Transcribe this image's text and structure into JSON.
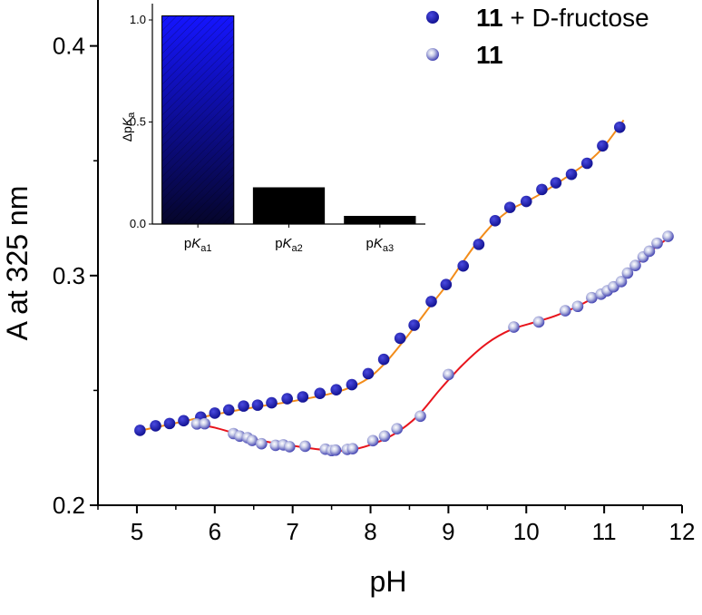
{
  "chart_data": [
    {
      "type": "scatter",
      "xlabel": "pH",
      "ylabel": "A at 325 nm",
      "xlim": [
        4.5,
        12
      ],
      "ylim": [
        0.2,
        0.42
      ],
      "x_ticks": [
        "5",
        "6",
        "7",
        "8",
        "9",
        "10",
        "11",
        "12"
      ],
      "y_ticks": [
        "0.2",
        "0.3",
        "0.4"
      ],
      "x_tick_values": [
        5,
        6,
        7,
        8,
        9,
        10,
        11,
        12
      ],
      "y_tick_values": [
        0.2,
        0.3,
        0.4
      ],
      "legend": {
        "position": "top-right",
        "entries": [
          {
            "bold": "11",
            "rest": " + D-fructose"
          },
          {
            "bold": "11",
            "rest": ""
          }
        ]
      },
      "series": [
        {
          "name": "11 + D-fructose",
          "marker_color": "#1a1aa6",
          "fit_color": "#f28c1a",
          "x": [
            5.04,
            5.24,
            5.42,
            5.6,
            5.82,
            6.0,
            6.18,
            6.37,
            6.55,
            6.73,
            6.93,
            7.13,
            7.35,
            7.56,
            7.76,
            7.97,
            8.17,
            8.38,
            8.56,
            8.78,
            8.97,
            9.19,
            9.39,
            9.6,
            9.79,
            10.0,
            10.2,
            10.38,
            10.58,
            10.78,
            10.98,
            11.2
          ],
          "y": [
            0.2326,
            0.2346,
            0.2356,
            0.2368,
            0.2384,
            0.2401,
            0.2415,
            0.2432,
            0.2436,
            0.2446,
            0.2464,
            0.2472,
            0.2487,
            0.2503,
            0.2525,
            0.2573,
            0.2635,
            0.2727,
            0.2784,
            0.2887,
            0.2961,
            0.3042,
            0.3136,
            0.3239,
            0.3297,
            0.3323,
            0.3375,
            0.3404,
            0.3441,
            0.3489,
            0.3565,
            0.3646
          ]
        },
        {
          "name": "11",
          "marker_color": "#3b3bb4",
          "fit_color": "#e8141c",
          "x": [
            5.77,
            5.87,
            6.24,
            6.32,
            6.42,
            6.48,
            6.6,
            6.78,
            6.88,
            6.96,
            7.16,
            7.42,
            7.5,
            7.55,
            7.7,
            7.77,
            8.03,
            8.18,
            8.34,
            8.64,
            9.0,
            9.84,
            10.16,
            10.5,
            10.66,
            10.84,
            10.96,
            11.04,
            11.12,
            11.22,
            11.3,
            11.4,
            11.5,
            11.58,
            11.68,
            11.82
          ],
          "y": [
            0.2354,
            0.2355,
            0.2312,
            0.2301,
            0.2294,
            0.2282,
            0.2268,
            0.2261,
            0.2263,
            0.2255,
            0.2257,
            0.2244,
            0.2238,
            0.224,
            0.2243,
            0.2246,
            0.2281,
            0.2301,
            0.2333,
            0.2388,
            0.2569,
            0.2776,
            0.2798,
            0.2847,
            0.2866,
            0.2904,
            0.2919,
            0.2934,
            0.2951,
            0.2974,
            0.3011,
            0.3044,
            0.3081,
            0.3106,
            0.3141,
            0.3171
          ]
        }
      ],
      "fits": [
        {
          "series": "11 + D-fructose",
          "x": [
            5.0,
            5.5,
            6.0,
            6.5,
            7.0,
            7.5,
            7.8,
            8.0,
            8.2,
            8.4,
            8.6,
            8.8,
            9.0,
            9.2,
            9.4,
            9.6,
            9.8,
            10.0,
            10.2,
            10.5,
            10.8,
            11.0,
            11.25
          ],
          "y": [
            0.2322,
            0.2358,
            0.2395,
            0.2426,
            0.2453,
            0.2487,
            0.2521,
            0.256,
            0.2624,
            0.2705,
            0.2792,
            0.2882,
            0.2968,
            0.3066,
            0.3158,
            0.3234,
            0.3288,
            0.3322,
            0.3359,
            0.3425,
            0.3497,
            0.3563,
            0.3677
          ]
        },
        {
          "series": "11",
          "x": [
            5.77,
            6.0,
            6.3,
            6.6,
            7.0,
            7.4,
            7.7,
            8.0,
            8.3,
            8.6,
            8.9,
            9.2,
            9.5,
            9.8,
            10.1,
            10.4,
            10.8,
            11.2,
            11.6,
            11.86
          ],
          "y": [
            0.2352,
            0.2338,
            0.2309,
            0.2281,
            0.2259,
            0.2241,
            0.2239,
            0.2263,
            0.2309,
            0.2387,
            0.2507,
            0.2617,
            0.2706,
            0.2764,
            0.2796,
            0.2828,
            0.2891,
            0.2979,
            0.3106,
            0.3172
          ]
        }
      ]
    },
    {
      "type": "bar",
      "inset": true,
      "ylabel": "ΔpKa",
      "ylim": [
        0,
        1.08
      ],
      "y_ticks": [
        "0.0",
        "0.5",
        "1.0"
      ],
      "y_tick_values": [
        0,
        0.5,
        1.0
      ],
      "categories": [
        {
          "base": "p",
          "italic": "K",
          "sub": "a1"
        },
        {
          "base": "p",
          "italic": "K",
          "sub": "a2"
        },
        {
          "base": "p",
          "italic": "K",
          "sub": "a3"
        }
      ],
      "values": [
        1.02,
        0.18,
        0.04
      ],
      "colors": [
        "#1a1aff",
        "#000000",
        "#000000"
      ]
    }
  ]
}
